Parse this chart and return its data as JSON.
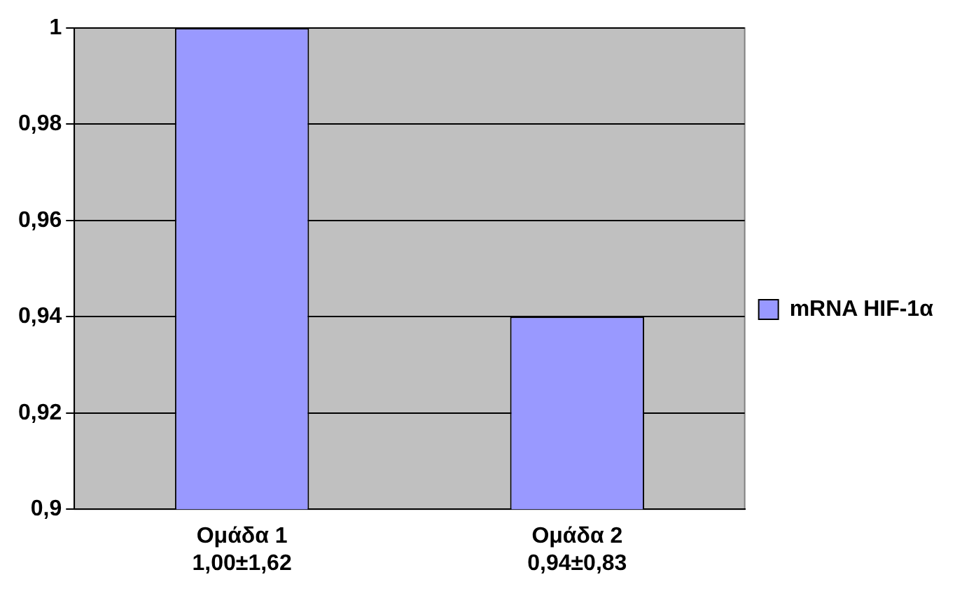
{
  "chart_data": {
    "type": "bar",
    "categories": [
      "Ομάδα 1\n1,00±1,62",
      "Ομάδα 2\n0,94±0,83"
    ],
    "series": [
      {
        "name": "mRNA HIF-1α",
        "color": "#9999ff",
        "values": [
          1.0,
          0.94
        ]
      }
    ],
    "ylim": [
      0.9,
      1
    ],
    "yticks": [
      {
        "value": 0.9,
        "label": "0,9"
      },
      {
        "value": 0.92,
        "label": "0,92"
      },
      {
        "value": 0.94,
        "label": "0,94"
      },
      {
        "value": 0.96,
        "label": "0,96"
      },
      {
        "value": 0.98,
        "label": "0,98"
      },
      {
        "value": 1,
        "label": "1"
      }
    ],
    "grid": "y",
    "legend": "right"
  }
}
